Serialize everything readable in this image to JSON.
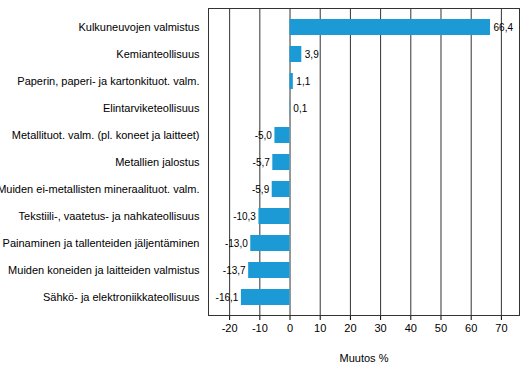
{
  "chart_data": {
    "type": "bar",
    "orientation": "horizontal",
    "categories": [
      "Kulkuneuvojen valmistus",
      "Kemianteollisuus",
      "Paperin, paperi- ja kartonkituot. valm.",
      "Elintarviketeollisuus",
      "Metallituot. valm. (pl. koneet ja laitteet)",
      "Metallien jalostus",
      "Muiden ei-metallisten mineraalituot. valm.",
      "Tekstiili-, vaatetus- ja nahkateollisuus",
      "Painaminen ja tallenteiden jäljentäminen",
      "Muiden koneiden ja laitteiden valmistus",
      "Sähkö- ja elektroniikkateollisuus"
    ],
    "values": [
      66.4,
      3.9,
      1.1,
      0.1,
      -5.0,
      -5.7,
      -5.9,
      -10.3,
      -13.0,
      -13.7,
      -16.1
    ],
    "value_labels": [
      "66,4",
      "3,9",
      "1,1",
      "0,1",
      "-5,0",
      "-5,7",
      "-5,9",
      "-10,3",
      "-13,0",
      "-13,7",
      "-16,1"
    ],
    "data_labels": true,
    "color": "#1b9ad6",
    "xlabel": "Muutos %",
    "xlim": [
      -27,
      76
    ],
    "xticks": [
      -20,
      -10,
      0,
      10,
      20,
      30,
      40,
      50,
      60,
      70
    ],
    "grid": true
  }
}
